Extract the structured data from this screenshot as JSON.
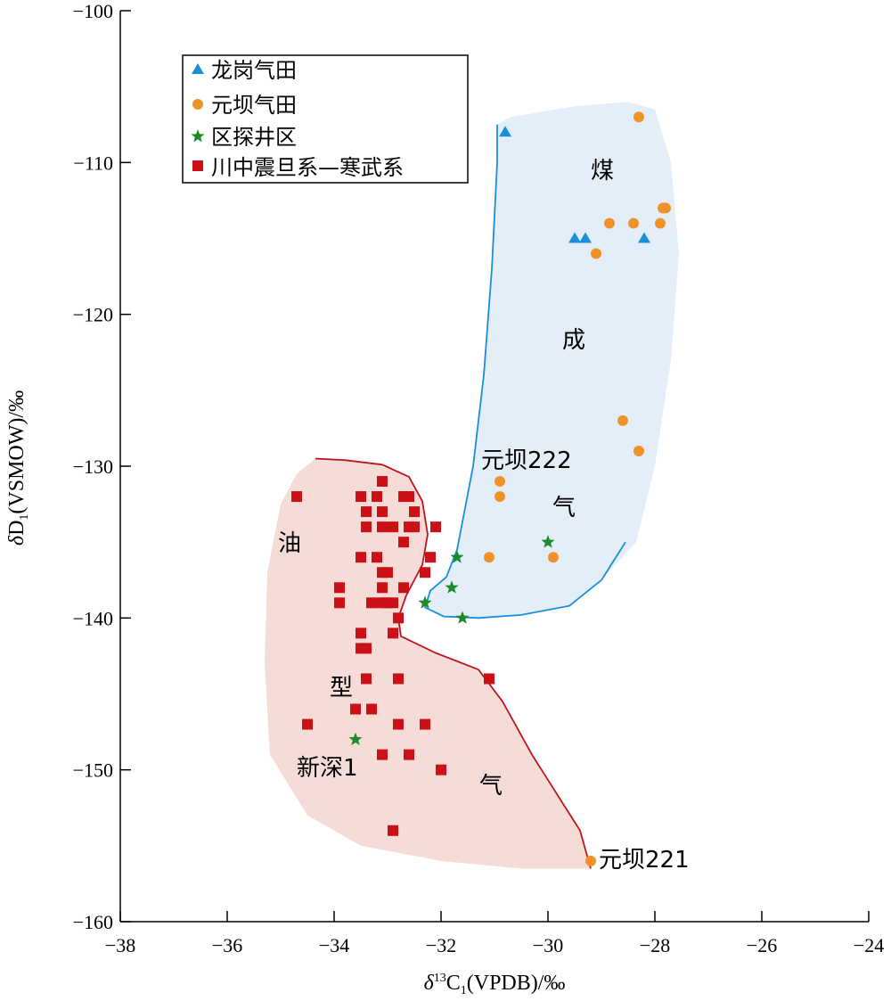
{
  "chart_data": {
    "type": "scatter",
    "xlabel": {
      "delta": "δ",
      "sup": "13",
      "main": "C",
      "sub": "1",
      "rest": "(VPDB)/‰"
    },
    "ylabel": {
      "delta": "δ",
      "main": "D",
      "sub": "1",
      "rest": "(VSMOW)/‰"
    },
    "xlim": [
      -38,
      -24
    ],
    "ylim": [
      -160,
      -100
    ],
    "x_ticks": [
      -38,
      -36,
      -34,
      -32,
      -30,
      -28,
      -26,
      -24
    ],
    "y_ticks": [
      -100,
      -110,
      -120,
      -130,
      -140,
      -150,
      -160
    ],
    "x_tick_labels": [
      "−38",
      "−36",
      "−34",
      "−32",
      "−30",
      "−28",
      "−26",
      "−24"
    ],
    "y_tick_labels": [
      "−100",
      "−110",
      "−120",
      "−130",
      "−140",
      "−150",
      "−160"
    ],
    "grid": false,
    "legend_position": "top-left",
    "series": [
      {
        "name": "龙岗气田",
        "marker": "triangle",
        "color": "#1a8fd8",
        "points": [
          [
            -30.8,
            -108
          ],
          [
            -29.5,
            -115
          ],
          [
            -29.3,
            -115
          ],
          [
            -28.2,
            -115
          ]
        ]
      },
      {
        "name": "元坝气田",
        "marker": "circle",
        "color": "#f0922a",
        "points": [
          [
            -28.3,
            -107
          ],
          [
            -27.8,
            -113
          ],
          [
            -27.85,
            -113
          ],
          [
            -28.85,
            -114
          ],
          [
            -28.4,
            -114
          ],
          [
            -27.9,
            -114
          ],
          [
            -29.1,
            -116
          ],
          [
            -28.6,
            -127
          ],
          [
            -28.3,
            -129
          ],
          [
            -30.9,
            -131
          ],
          [
            -30.9,
            -132
          ],
          [
            -31.1,
            -136
          ],
          [
            -29.9,
            -136
          ],
          [
            -29.2,
            -156
          ]
        ]
      },
      {
        "name": "区探井区",
        "marker": "star",
        "color": "#1b8a2a",
        "points": [
          [
            -30.0,
            -135
          ],
          [
            -31.7,
            -136
          ],
          [
            -31.8,
            -138
          ],
          [
            -32.3,
            -139
          ],
          [
            -31.6,
            -140
          ],
          [
            -33.6,
            -148
          ]
        ]
      },
      {
        "name": "川中震旦系—寒武系",
        "marker": "square",
        "color": "#cc1018",
        "points": [
          [
            -34.7,
            -132
          ],
          [
            -33.1,
            -131
          ],
          [
            -33.5,
            -132
          ],
          [
            -33.2,
            -132
          ],
          [
            -32.7,
            -132
          ],
          [
            -32.6,
            -132
          ],
          [
            -33.4,
            -133
          ],
          [
            -33.1,
            -133
          ],
          [
            -32.5,
            -133
          ],
          [
            -33.4,
            -134
          ],
          [
            -33.1,
            -134
          ],
          [
            -32.9,
            -134
          ],
          [
            -32.6,
            -134
          ],
          [
            -32.5,
            -134
          ],
          [
            -32.1,
            -134
          ],
          [
            -32.7,
            -135
          ],
          [
            -33.5,
            -136
          ],
          [
            -33.2,
            -136
          ],
          [
            -32.2,
            -136
          ],
          [
            -32.3,
            -137
          ],
          [
            -33.1,
            -137
          ],
          [
            -33.0,
            -137
          ],
          [
            -33.9,
            -138
          ],
          [
            -33.1,
            -138
          ],
          [
            -32.7,
            -138
          ],
          [
            -33.9,
            -139
          ],
          [
            -33.3,
            -139
          ],
          [
            -33.1,
            -139
          ],
          [
            -33.0,
            -139
          ],
          [
            -32.9,
            -139
          ],
          [
            -32.8,
            -140
          ],
          [
            -33.5,
            -141
          ],
          [
            -32.9,
            -141
          ],
          [
            -33.5,
            -142
          ],
          [
            -33.4,
            -142
          ],
          [
            -33.4,
            -144
          ],
          [
            -32.8,
            -144
          ],
          [
            -31.1,
            -144
          ],
          [
            -33.6,
            -146
          ],
          [
            -33.3,
            -146
          ],
          [
            -34.5,
            -147
          ],
          [
            -32.8,
            -147
          ],
          [
            -32.3,
            -147
          ],
          [
            -33.1,
            -149
          ],
          [
            -32.6,
            -149
          ],
          [
            -32.0,
            -150
          ],
          [
            -32.9,
            -154
          ]
        ]
      }
    ],
    "region_labels": {
      "coal_1": "煤",
      "coal_2": "成",
      "coal_3": "气",
      "oil_1": "油",
      "oil_2": "型",
      "oil_3": "气"
    },
    "point_labels": {
      "yuanba222": "元坝222",
      "xinshen1": "新深1",
      "yuanba221": "元坝221"
    },
    "region_colors": {
      "coal_fill": "#e3eef8",
      "coal_line": "#1a8fd8",
      "oil_fill": "#f5dcd6",
      "oil_line": "#c0141c"
    }
  }
}
